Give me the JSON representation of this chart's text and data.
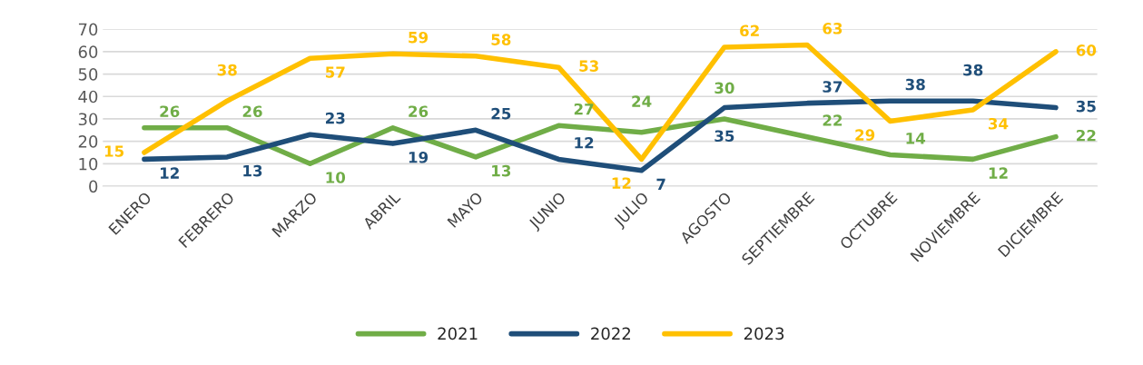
{
  "chart_data": {
    "type": "line",
    "categories": [
      "ENERO",
      "FEBRERO",
      "MARZO",
      "ABRIL",
      "MAYO",
      "JUNIO",
      "JULIO",
      "AGOSTO",
      "SEPTIEMBRE",
      "OCTUBRE",
      "NOVIEMBRE",
      "DICIEMBRE"
    ],
    "series": [
      {
        "name": "2021",
        "color": "#70ad47",
        "values": [
          26,
          26,
          10,
          26,
          13,
          27,
          24,
          30,
          22,
          14,
          12,
          22
        ]
      },
      {
        "name": "2022",
        "color": "#1f4e79",
        "values": [
          12,
          13,
          23,
          19,
          25,
          12,
          7,
          35,
          37,
          38,
          38,
          35
        ]
      },
      {
        "name": "2023",
        "color": "#ffc000",
        "values": [
          15,
          38,
          57,
          59,
          58,
          53,
          12,
          62,
          63,
          29,
          34,
          60
        ]
      }
    ],
    "ylim": [
      0,
      70
    ],
    "yticks": [
      0,
      10,
      20,
      30,
      40,
      50,
      60,
      70
    ],
    "grid": "y",
    "legend": "bottom",
    "data_labels": true,
    "marker": "none",
    "line_style": "solid"
  }
}
